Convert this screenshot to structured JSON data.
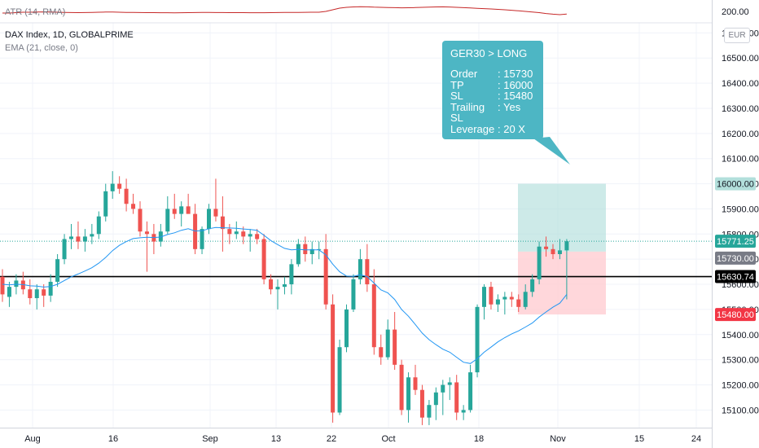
{
  "indicators": {
    "atr_label": "ATR (14, RMA)",
    "atr_axis_value": "200.00",
    "instrument_label": "DAX Index, 1D, GLOBALPRIME",
    "ema_label": "EMA (21, close, 0)",
    "currency": "EUR"
  },
  "callout": {
    "title": "GER30 > LONG",
    "rows": [
      {
        "key": "Order",
        "value": ": 15730"
      },
      {
        "key": "TP",
        "value": ": 16000"
      },
      {
        "key": "SL",
        "value": ": 15480"
      },
      {
        "key": "Trailing SL",
        "value": ": Yes"
      },
      {
        "key": "Leverage",
        "value": ": 20 X"
      }
    ]
  },
  "price_tags": {
    "tp": "16000.00",
    "last": "15771.25",
    "order": "15730.00",
    "level": "15630.74",
    "sl": "15480.00"
  },
  "colors": {
    "up": "#26a69a",
    "down": "#ef5350",
    "ema": "#2196f3",
    "atr": "#c62828",
    "target_zone": "#b2dfdb",
    "stop_zone": "#ffcdd2",
    "callout": "#4db6c4"
  },
  "chart_data": {
    "type": "candlestick",
    "title": "DAX Index, 1D, GLOBALPRIME",
    "x_tick_labels": [
      "Aug",
      "16",
      "Sep",
      "13",
      "22",
      "Oct",
      "18",
      "Nov",
      "15",
      "24"
    ],
    "y_tick_labels": [
      "15100.00",
      "15200.00",
      "15300.00",
      "15400.00",
      "15500.00",
      "15600.00",
      "15700.00",
      "15800.00",
      "15900.00",
      "16000.00",
      "16100.00",
      "16200.00",
      "16300.00",
      "16400.00",
      "16500.00",
      "16600.00"
    ],
    "y_range": [
      15030,
      16640
    ],
    "horizontal_level": 15630.74,
    "long_position": {
      "entry": 15730,
      "take_profit": 16000,
      "stop_loss": 15480
    },
    "last_price": 15771.25,
    "candles": [
      {
        "o": 15630,
        "h": 15660,
        "l": 15530,
        "c": 15560
      },
      {
        "o": 15550,
        "h": 15610,
        "l": 15510,
        "c": 15590
      },
      {
        "o": 15590,
        "h": 15640,
        "l": 15560,
        "c": 15615
      },
      {
        "o": 15615,
        "h": 15650,
        "l": 15560,
        "c": 15580
      },
      {
        "o": 15580,
        "h": 15620,
        "l": 15520,
        "c": 15545
      },
      {
        "o": 15545,
        "h": 15600,
        "l": 15500,
        "c": 15580
      },
      {
        "o": 15580,
        "h": 15600,
        "l": 15510,
        "c": 15555
      },
      {
        "o": 15555,
        "h": 15640,
        "l": 15530,
        "c": 15610
      },
      {
        "o": 15610,
        "h": 15720,
        "l": 15590,
        "c": 15700
      },
      {
        "o": 15700,
        "h": 15800,
        "l": 15680,
        "c": 15780
      },
      {
        "o": 15780,
        "h": 15840,
        "l": 15740,
        "c": 15790
      },
      {
        "o": 15790,
        "h": 15850,
        "l": 15740,
        "c": 15770
      },
      {
        "o": 15770,
        "h": 15820,
        "l": 15730,
        "c": 15790
      },
      {
        "o": 15790,
        "h": 15840,
        "l": 15760,
        "c": 15800
      },
      {
        "o": 15800,
        "h": 15890,
        "l": 15780,
        "c": 15870
      },
      {
        "o": 15870,
        "h": 16000,
        "l": 15850,
        "c": 15970
      },
      {
        "o": 15970,
        "h": 16050,
        "l": 15940,
        "c": 16000
      },
      {
        "o": 16000,
        "h": 16030,
        "l": 15960,
        "c": 15980
      },
      {
        "o": 15980,
        "h": 16020,
        "l": 15890,
        "c": 15920
      },
      {
        "o": 15920,
        "h": 15960,
        "l": 15880,
        "c": 15900
      },
      {
        "o": 15900,
        "h": 15930,
        "l": 15790,
        "c": 15810
      },
      {
        "o": 15810,
        "h": 15850,
        "l": 15650,
        "c": 15800
      },
      {
        "o": 15800,
        "h": 15840,
        "l": 15720,
        "c": 15770
      },
      {
        "o": 15770,
        "h": 15840,
        "l": 15750,
        "c": 15810
      },
      {
        "o": 15810,
        "h": 15950,
        "l": 15800,
        "c": 15900
      },
      {
        "o": 15900,
        "h": 15960,
        "l": 15860,
        "c": 15880
      },
      {
        "o": 15880,
        "h": 15930,
        "l": 15830,
        "c": 15910
      },
      {
        "o": 15910,
        "h": 15960,
        "l": 15890,
        "c": 15880
      },
      {
        "o": 15880,
        "h": 15920,
        "l": 15720,
        "c": 15740
      },
      {
        "o": 15740,
        "h": 15830,
        "l": 15720,
        "c": 15820
      },
      {
        "o": 15820,
        "h": 15920,
        "l": 15800,
        "c": 15900
      },
      {
        "o": 15900,
        "h": 16020,
        "l": 15850,
        "c": 15870
      },
      {
        "o": 15870,
        "h": 15950,
        "l": 15730,
        "c": 15820
      },
      {
        "o": 15820,
        "h": 15840,
        "l": 15760,
        "c": 15800
      },
      {
        "o": 15800,
        "h": 15850,
        "l": 15780,
        "c": 15810
      },
      {
        "o": 15810,
        "h": 15830,
        "l": 15760,
        "c": 15790
      },
      {
        "o": 15790,
        "h": 15820,
        "l": 15730,
        "c": 15800
      },
      {
        "o": 15800,
        "h": 15820,
        "l": 15760,
        "c": 15780
      },
      {
        "o": 15780,
        "h": 15800,
        "l": 15600,
        "c": 15620
      },
      {
        "o": 15620,
        "h": 15640,
        "l": 15560,
        "c": 15580
      },
      {
        "o": 15580,
        "h": 15620,
        "l": 15500,
        "c": 15590
      },
      {
        "o": 15590,
        "h": 15630,
        "l": 15560,
        "c": 15600
      },
      {
        "o": 15600,
        "h": 15700,
        "l": 15560,
        "c": 15680
      },
      {
        "o": 15680,
        "h": 15780,
        "l": 15670,
        "c": 15760
      },
      {
        "o": 15760,
        "h": 15790,
        "l": 15690,
        "c": 15720
      },
      {
        "o": 15720,
        "h": 15770,
        "l": 15680,
        "c": 15740
      },
      {
        "o": 15740,
        "h": 15770,
        "l": 15700,
        "c": 15740
      },
      {
        "o": 15740,
        "h": 15800,
        "l": 15500,
        "c": 15520
      },
      {
        "o": 15520,
        "h": 15560,
        "l": 15050,
        "c": 15090
      },
      {
        "o": 15090,
        "h": 15380,
        "l": 15080,
        "c": 15350
      },
      {
        "o": 15350,
        "h": 15520,
        "l": 15330,
        "c": 15500
      },
      {
        "o": 15500,
        "h": 15640,
        "l": 15490,
        "c": 15620
      },
      {
        "o": 15620,
        "h": 15740,
        "l": 15600,
        "c": 15700
      },
      {
        "o": 15700,
        "h": 15760,
        "l": 15570,
        "c": 15600
      },
      {
        "o": 15600,
        "h": 15660,
        "l": 15320,
        "c": 15350
      },
      {
        "o": 15350,
        "h": 15400,
        "l": 15280,
        "c": 15310
      },
      {
        "o": 15310,
        "h": 15460,
        "l": 15300,
        "c": 15420
      },
      {
        "o": 15420,
        "h": 15490,
        "l": 15260,
        "c": 15280
      },
      {
        "o": 15280,
        "h": 15300,
        "l": 15080,
        "c": 15100
      },
      {
        "o": 15100,
        "h": 15250,
        "l": 15050,
        "c": 15230
      },
      {
        "o": 15230,
        "h": 15280,
        "l": 15160,
        "c": 15180
      },
      {
        "o": 15180,
        "h": 15200,
        "l": 15040,
        "c": 15070
      },
      {
        "o": 15070,
        "h": 15140,
        "l": 15040,
        "c": 15120
      },
      {
        "o": 15120,
        "h": 15190,
        "l": 15060,
        "c": 15170
      },
      {
        "o": 15170,
        "h": 15220,
        "l": 15080,
        "c": 15200
      },
      {
        "o": 15200,
        "h": 15230,
        "l": 15140,
        "c": 15210
      },
      {
        "o": 15210,
        "h": 15240,
        "l": 15060,
        "c": 15090
      },
      {
        "o": 15090,
        "h": 15120,
        "l": 15060,
        "c": 15100
      },
      {
        "o": 15100,
        "h": 15280,
        "l": 15090,
        "c": 15250
      },
      {
        "o": 15250,
        "h": 15520,
        "l": 15230,
        "c": 15510
      },
      {
        "o": 15510,
        "h": 15600,
        "l": 15460,
        "c": 15590
      },
      {
        "o": 15590,
        "h": 15610,
        "l": 15500,
        "c": 15520
      },
      {
        "o": 15520,
        "h": 15560,
        "l": 15490,
        "c": 15540
      },
      {
        "o": 15540,
        "h": 15570,
        "l": 15480,
        "c": 15550
      },
      {
        "o": 15550,
        "h": 15570,
        "l": 15510,
        "c": 15540
      },
      {
        "o": 15540,
        "h": 15560,
        "l": 15490,
        "c": 15510
      },
      {
        "o": 15510,
        "h": 15600,
        "l": 15500,
        "c": 15570
      },
      {
        "o": 15570,
        "h": 15640,
        "l": 15550,
        "c": 15620
      },
      {
        "o": 15620,
        "h": 15770,
        "l": 15600,
        "c": 15750
      },
      {
        "o": 15750,
        "h": 15790,
        "l": 15710,
        "c": 15740
      },
      {
        "o": 15740,
        "h": 15760,
        "l": 15700,
        "c": 15720
      },
      {
        "o": 15720,
        "h": 15780,
        "l": 15700,
        "c": 15735
      },
      {
        "o": 15735,
        "h": 15780,
        "l": 15540,
        "c": 15771.25
      }
    ],
    "ema": [
      15600,
      15598,
      15600,
      15599,
      15594,
      15593,
      15589,
      15591,
      15600,
      15615,
      15630,
      15641,
      15653,
      15666,
      15684,
      15707,
      15734,
      15755,
      15770,
      15782,
      15785,
      15787,
      15786,
      15788,
      15798,
      15805,
      15815,
      15821,
      15812,
      15813,
      15821,
      15826,
      15825,
      15824,
      15823,
      15820,
      15818,
      15815,
      15795,
      15774,
      15758,
      15743,
      15737,
      15739,
      15737,
      15737,
      15737,
      15717,
      15680,
      15650,
      15633,
      15632,
      15638,
      15631,
      15605,
      15578,
      15566,
      15540,
      15500,
      15473,
      15440,
      15406,
      15380,
      15360,
      15342,
      15330,
      15310,
      15290,
      15285,
      15304,
      15330,
      15350,
      15371,
      15388,
      15403,
      15415,
      15430,
      15446,
      15470,
      15490,
      15509,
      15525,
      15560
    ]
  }
}
